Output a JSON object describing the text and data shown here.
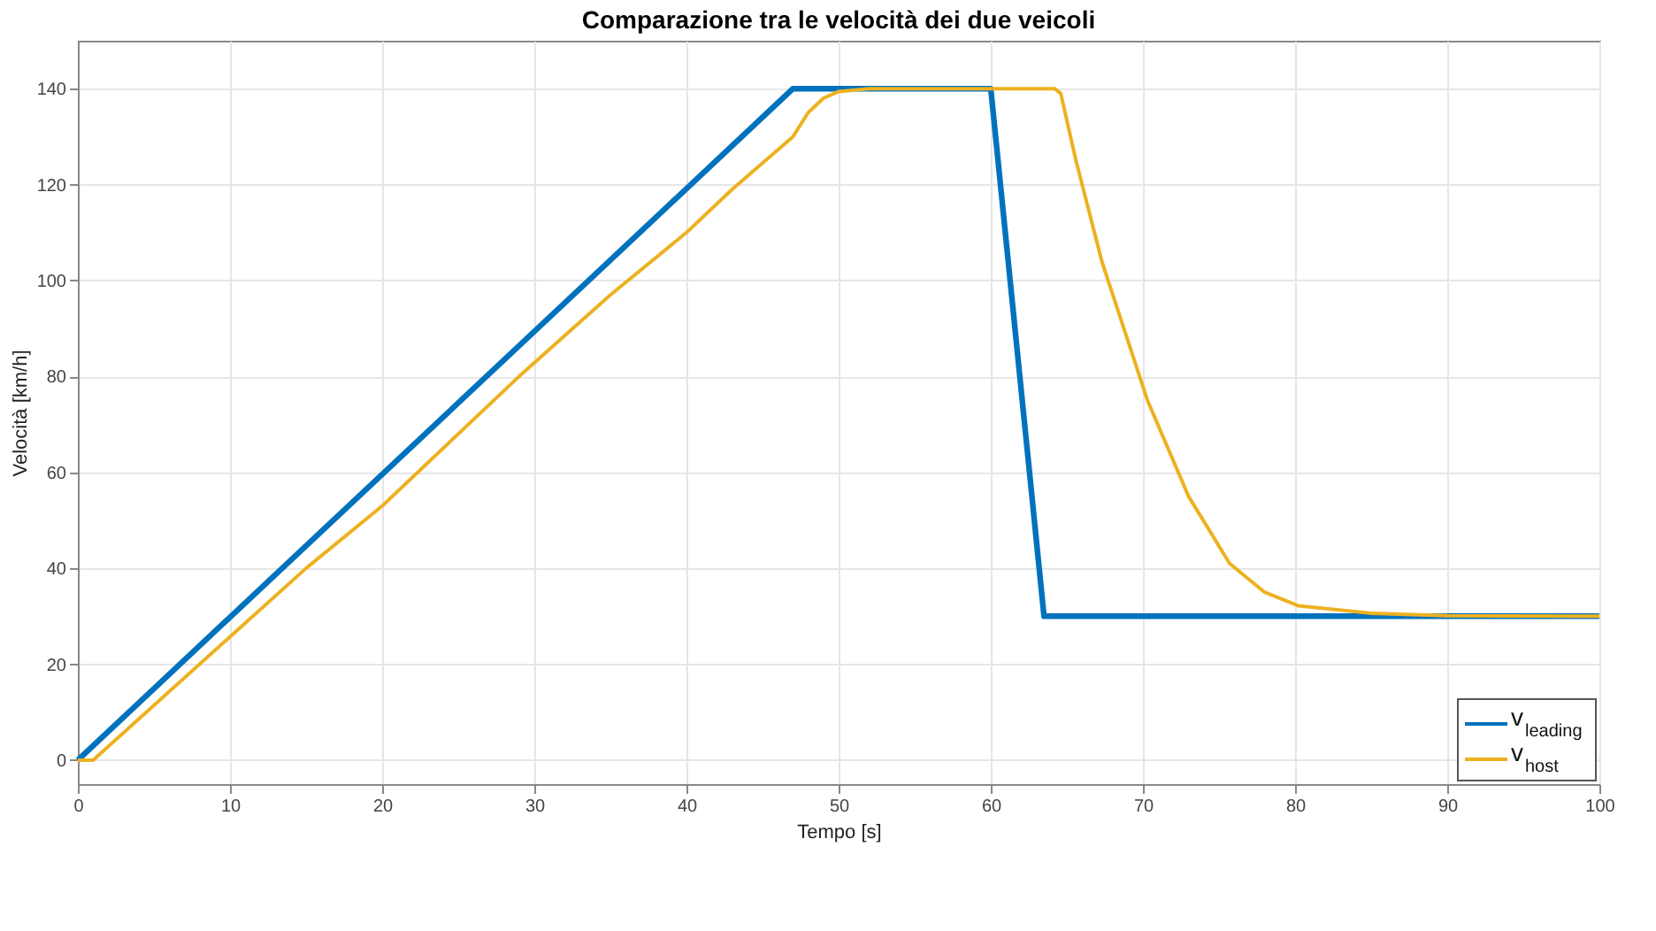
{
  "chart_data": {
    "type": "line",
    "title": "Comparazione tra le velocità dei due veicoli",
    "xlabel": "Tempo [s]",
    "ylabel": "Velocità [km/h]",
    "xlim": [
      0,
      100
    ],
    "ylim": [
      -5,
      150
    ],
    "xticks": [
      0,
      10,
      20,
      30,
      40,
      50,
      60,
      70,
      80,
      90,
      100
    ],
    "yticks": [
      0,
      20,
      40,
      60,
      80,
      100,
      120,
      140
    ],
    "grid": true,
    "legend": "bottom right",
    "line_style": "solid",
    "series": [
      {
        "name": "v$_{leading}$",
        "color": "#0072bd",
        "x": [
          0,
          47,
          60,
          63.5,
          100
        ],
        "values": [
          0,
          140,
          140,
          30,
          30
        ]
      },
      {
        "name": "v$_{host}$",
        "color": "#edb120",
        "x": [
          0,
          1,
          15,
          20,
          25,
          29,
          35,
          40,
          43,
          47,
          48,
          49,
          50,
          52,
          64.2,
          64.6,
          65.6,
          67.3,
          70.3,
          73,
          75.7,
          78,
          80.2,
          85,
          90,
          100
        ],
        "values": [
          0,
          0,
          40,
          53,
          68,
          80,
          97,
          110,
          119,
          130,
          135,
          138,
          139.4,
          140,
          140,
          139,
          125,
          104,
          75,
          55,
          41,
          35,
          32.2,
          30.6,
          30.1,
          30
        ]
      }
    ]
  }
}
